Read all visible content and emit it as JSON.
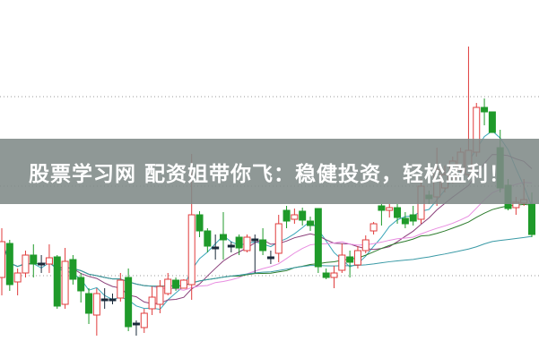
{
  "banner": {
    "title": "股票学习网 配资姐带你飞：稳健投资，轻松盈利！"
  },
  "colors": {
    "up": "#e03c3c",
    "down": "#1f9a2a",
    "doji": "#1a2a3a",
    "grid": "#9a9a9a",
    "banner_bg": "#808a88"
  },
  "chart_data": {
    "type": "candlestick",
    "title": "",
    "xlabel": "",
    "ylabel": "",
    "ylim": [
      0,
      100
    ],
    "grid": true,
    "grid_levels": [
      73,
      48,
      23
    ],
    "ohlc": [
      [
        22.5,
        36.25,
        17.5,
        32.5
      ],
      [
        32,
        33,
        18.75,
        20.5
      ],
      [
        21.25,
        25,
        17.5,
        23.75
      ],
      [
        23.75,
        30,
        22.5,
        28.75
      ],
      [
        28.75,
        31.75,
        22.5,
        26.25
      ],
      [
        26.25,
        28.75,
        23.75,
        26.5
      ],
      [
        26.25,
        31.75,
        23.75,
        28
      ],
      [
        28.25,
        28.75,
        13.75,
        14.5
      ],
      [
        15,
        30.75,
        13.75,
        27
      ],
      [
        27.5,
        28.75,
        20.5,
        22
      ],
      [
        22.5,
        23.75,
        15.5,
        18.75
      ],
      [
        18,
        19.5,
        9.5,
        12.5
      ],
      [
        12,
        19.5,
        6.25,
        18
      ],
      [
        16.5,
        19.5,
        13.75,
        16
      ],
      [
        16,
        18,
        15,
        16.5
      ],
      [
        16.75,
        23.75,
        15.75,
        21.75
      ],
      [
        22.5,
        25,
        7.5,
        8.75
      ],
      [
        9.5,
        10.5,
        6.25,
        9.75
      ],
      [
        8.5,
        13.75,
        7,
        12.5
      ],
      [
        13.75,
        20,
        12,
        17
      ],
      [
        15,
        21.75,
        12.5,
        20
      ],
      [
        18,
        23.75,
        17.5,
        22
      ],
      [
        21.75,
        22.5,
        18.75,
        19.5
      ],
      [
        19.5,
        22,
        19.5,
        21.75
      ],
      [
        20.5,
        57,
        16.25,
        40
      ],
      [
        40,
        41,
        33.75,
        35.5
      ],
      [
        35.5,
        36.25,
        29.5,
        31.25
      ],
      [
        30.5,
        34.5,
        27.5,
        31
      ],
      [
        34.5,
        40.75,
        27.5,
        33
      ],
      [
        31,
        32.5,
        29.5,
        31.5
      ],
      [
        33.75,
        34.5,
        28.75,
        30.75
      ],
      [
        30,
        34.5,
        29.5,
        33.75
      ],
      [
        32.75,
        34.5,
        23.75,
        33.25
      ],
      [
        33,
        36.25,
        28.75,
        30
      ],
      [
        28.25,
        30,
        26.25,
        27.75
      ],
      [
        29.25,
        40,
        26.75,
        37.5
      ],
      [
        41.25,
        42.5,
        36.25,
        38.25
      ],
      [
        38.75,
        41.75,
        37.5,
        40
      ],
      [
        41,
        42,
        37,
        38.5
      ],
      [
        38.25,
        39.5,
        35.5,
        37
      ],
      [
        41.75,
        41.75,
        23.75,
        25.5
      ],
      [
        23.75,
        25,
        22,
        22.5
      ],
      [
        22.5,
        25.75,
        19.5,
        23.75
      ],
      [
        24.5,
        32,
        23.75,
        28.75
      ],
      [
        28.25,
        30,
        22.5,
        26.75
      ],
      [
        26,
        31.25,
        25,
        30
      ],
      [
        30,
        34.25,
        29.25,
        33
      ],
      [
        35.5,
        38,
        34.5,
        37.5
      ],
      [
        42.5,
        43,
        37,
        41.25
      ],
      [
        41.25,
        43,
        39.25,
        42
      ],
      [
        42,
        43,
        37.5,
        39.25
      ],
      [
        39,
        40.75,
        36.25,
        37.5
      ],
      [
        40,
        42.5,
        37,
        38.25
      ],
      [
        38.75,
        50,
        37.5,
        48
      ],
      [
        45.5,
        46.75,
        43,
        44.5
      ],
      [
        45,
        58.75,
        42.5,
        52.5
      ],
      [
        47.5,
        53.75,
        46.25,
        51.25
      ],
      [
        50,
        56.25,
        48.75,
        55
      ],
      [
        52.5,
        58.75,
        51.25,
        57.5
      ],
      [
        51.25,
        87,
        50,
        58
      ],
      [
        57.5,
        71.25,
        56.25,
        70
      ],
      [
        70,
        72.5,
        65,
        68.75
      ],
      [
        68.75,
        68.75,
        63,
        63
      ],
      [
        58.75,
        63.75,
        46.25,
        47.5
      ],
      [
        48.25,
        50,
        41.25,
        41.75
      ],
      [
        42,
        45,
        40,
        43.5
      ],
      [
        43.25,
        50,
        42.5,
        44.25
      ],
      [
        43,
        46.25,
        33.75,
        34.5
      ]
    ],
    "moving_averages": [
      {
        "period": 5,
        "color": "#3aa6b9"
      },
      {
        "period": 10,
        "color": "#8a3f7a"
      },
      {
        "period": 20,
        "color": "#e88ce0"
      },
      {
        "period": 30,
        "color": "#2e7d2e"
      },
      {
        "period": 60,
        "color": "#3a9aa6"
      }
    ]
  }
}
